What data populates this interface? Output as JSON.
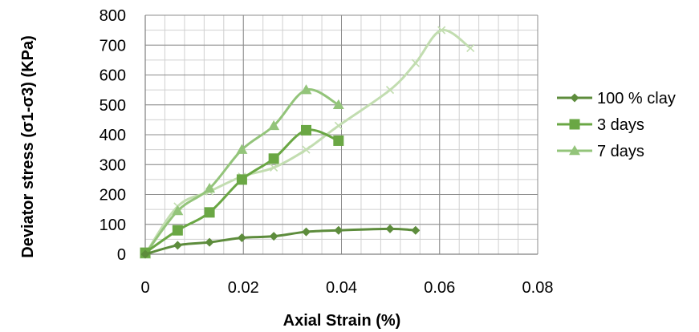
{
  "chart_data": {
    "type": "scatter",
    "title": "",
    "xlabel": "Axial Strain (%)",
    "ylabel": "Deviator stress (σ1-σ3) (KPa)",
    "xlim": [
      0,
      0.08
    ],
    "ylim": [
      0,
      800
    ],
    "xticks": [
      0,
      0.02,
      0.04,
      0.06,
      0.08
    ],
    "yticks": [
      0,
      100,
      200,
      300,
      400,
      500,
      600,
      700,
      800
    ],
    "xtick_labels": [
      "0",
      "0.02",
      "0.04",
      "0.06",
      "0.08"
    ],
    "ytick_labels": [
      "0",
      "100",
      "200",
      "300",
      "400",
      "500",
      "600",
      "700",
      "800"
    ],
    "grid": true,
    "smoothed_lines": true,
    "legend_position": "right",
    "series": [
      {
        "name": "100 % clay",
        "marker": "diamond",
        "color": "#5d8c3c",
        "x": [
          0,
          0.0066,
          0.0131,
          0.0197,
          0.0262,
          0.0328,
          0.0394,
          0.0499,
          0.0551
        ],
        "y": [
          0,
          30,
          40,
          55,
          60,
          75,
          80,
          85,
          80
        ]
      },
      {
        "name": "3 days",
        "marker": "square",
        "color": "#6aa744",
        "x": [
          0,
          0.0066,
          0.0131,
          0.0197,
          0.0262,
          0.0328,
          0.0394
        ],
        "y": [
          5,
          80,
          140,
          250,
          320,
          415,
          380
        ]
      },
      {
        "name": "7 days",
        "marker": "triangle",
        "color": "#93c47a",
        "x": [
          0,
          0.0066,
          0.0131,
          0.0197,
          0.0262,
          0.0328,
          0.0394
        ],
        "y": [
          0,
          145,
          220,
          350,
          430,
          550,
          500
        ]
      },
      {
        "name": "",
        "marker": "x",
        "color": "#c2ddb0",
        "x": [
          0,
          0.0066,
          0.0131,
          0.0197,
          0.0262,
          0.0328,
          0.0394,
          0.0499,
          0.0551,
          0.0604,
          0.0663
        ],
        "y": [
          0,
          160,
          210,
          260,
          290,
          350,
          430,
          550,
          640,
          750,
          690
        ]
      }
    ]
  }
}
